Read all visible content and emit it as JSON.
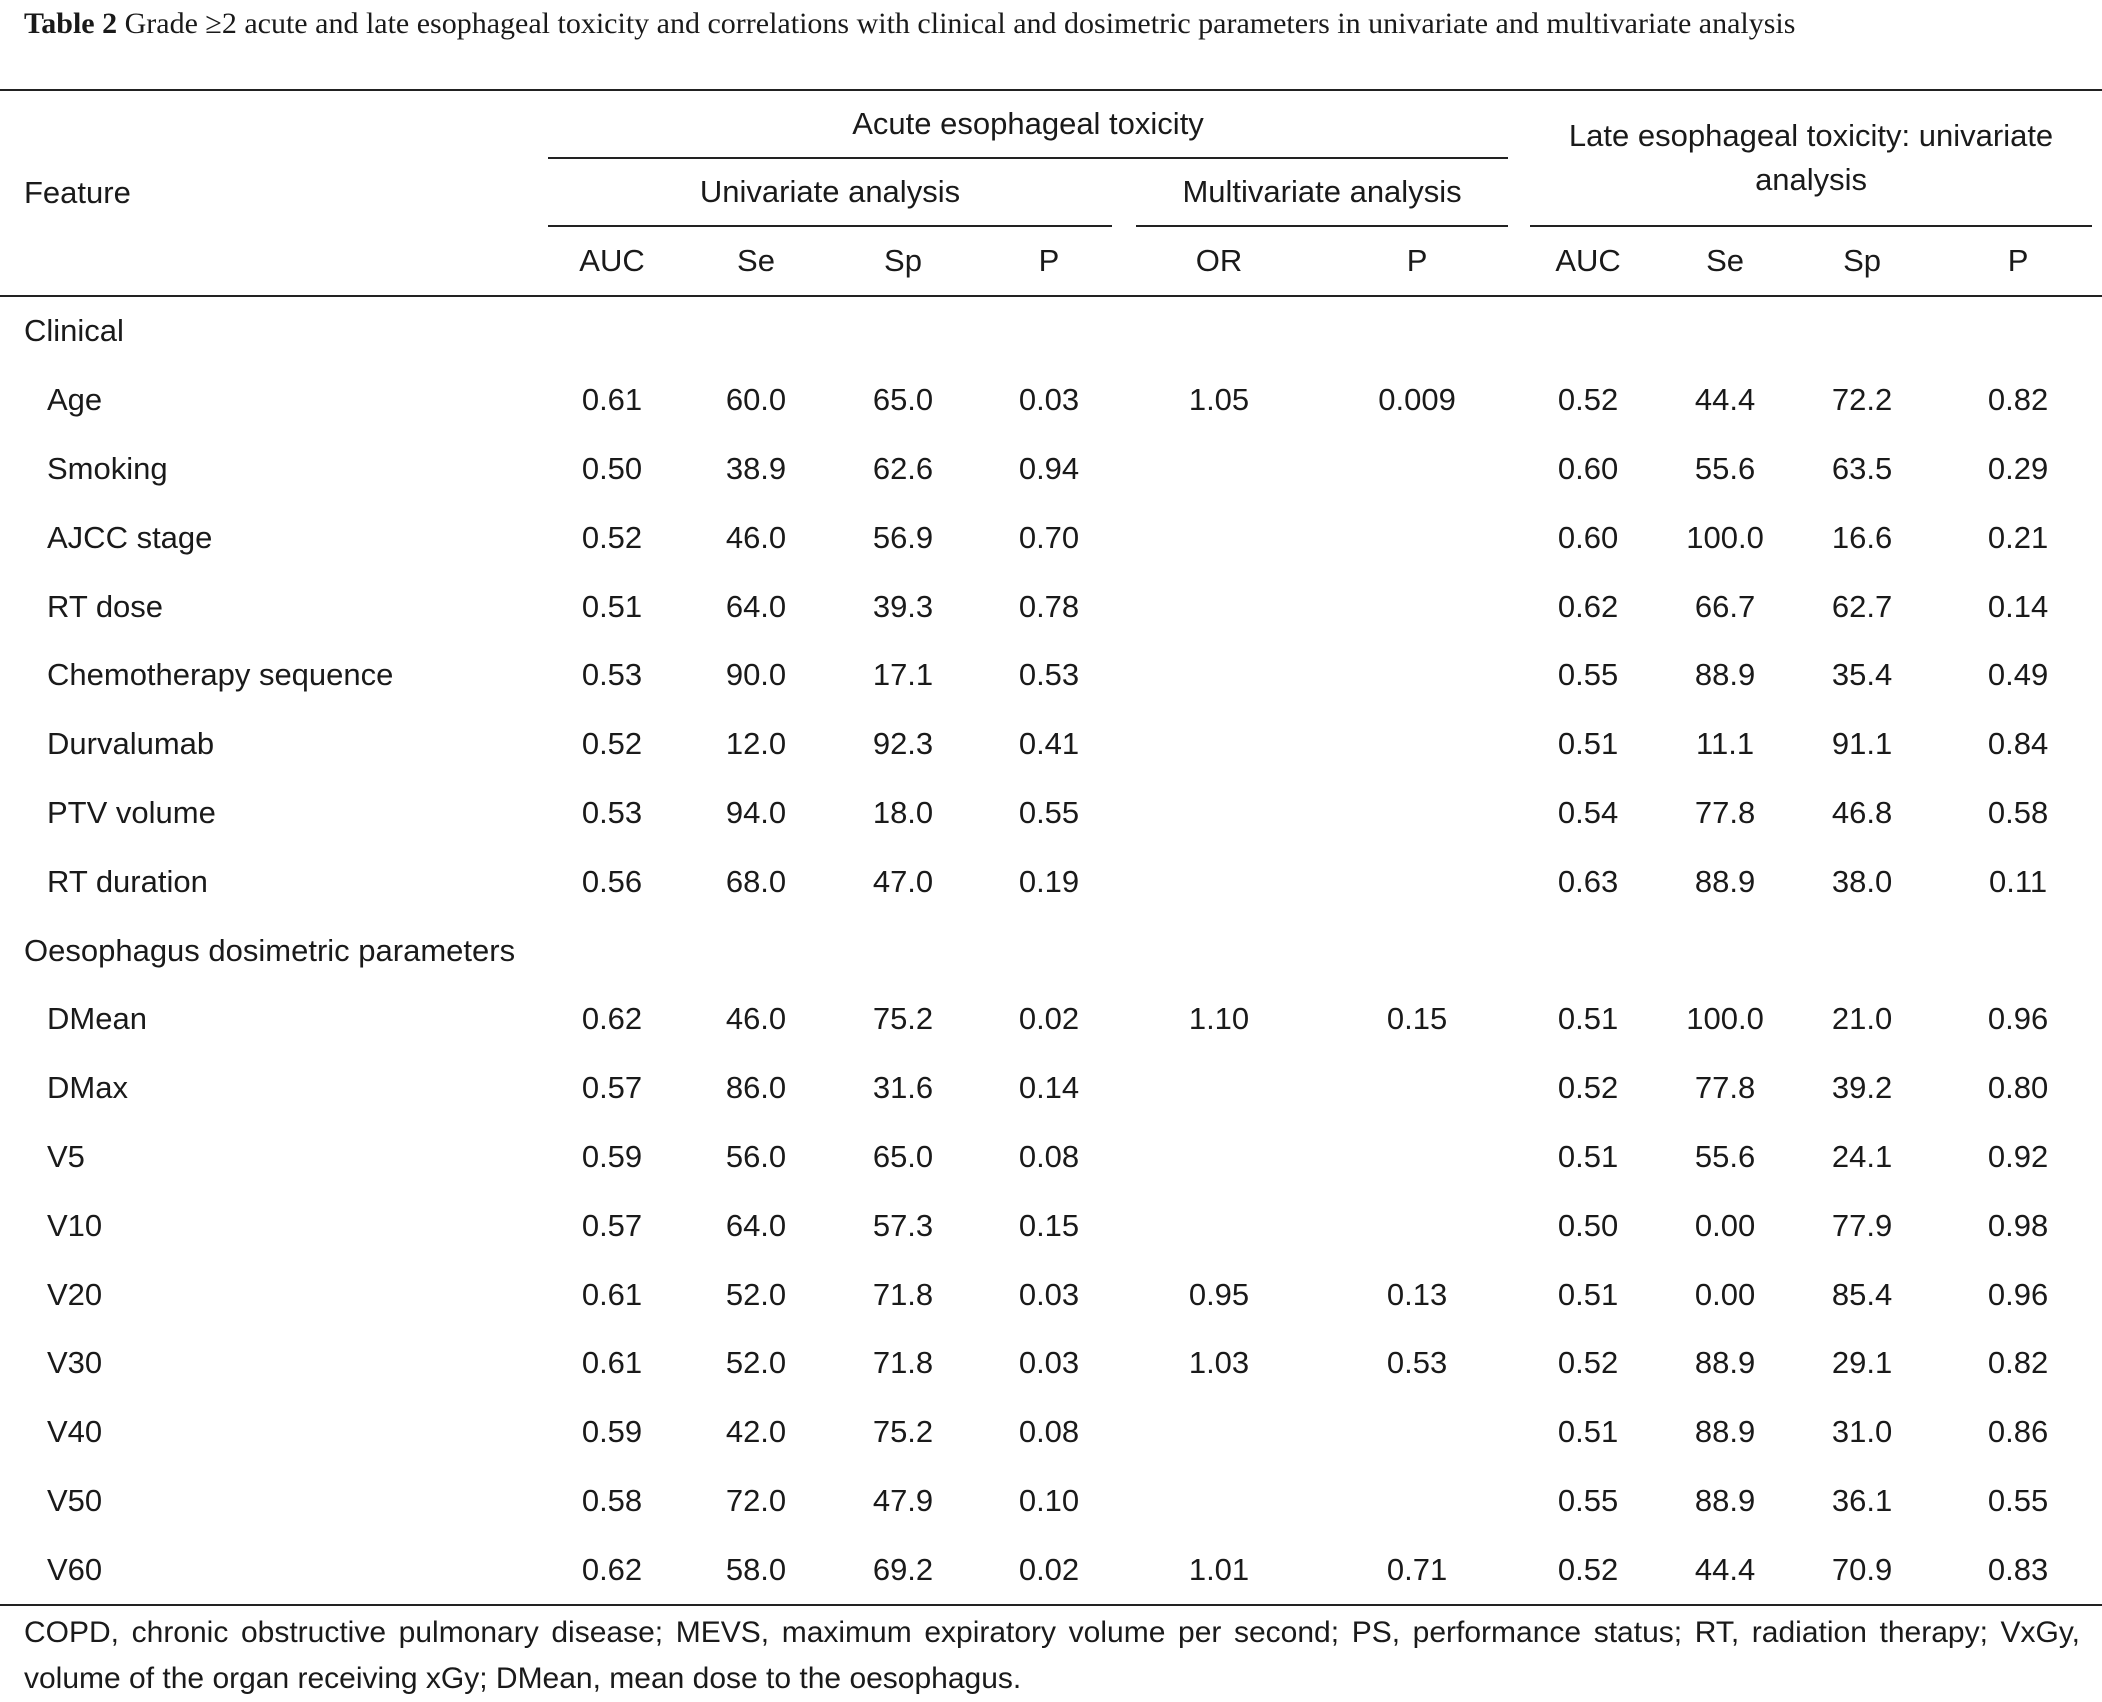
{
  "caption": {
    "label": "Table 2",
    "text": "Grade ≥2 acute and late esophageal toxicity and correlations with clinical and dosimetric parameters in univariate and multivariate analysis"
  },
  "header": {
    "feature": "Feature",
    "acute_group": "Acute esophageal toxicity",
    "univariate": "Univariate analysis",
    "multivariate": "Multivariate analysis",
    "late_group": "Late esophageal toxicity: univariate analysis",
    "cols": {
      "auc": "AUC",
      "se": "Se",
      "sp": "Sp",
      "p": "P",
      "or": "OR"
    }
  },
  "sections": {
    "clinical": "Clinical",
    "dosimetric": "Oesophagus dosimetric parameters"
  },
  "rows": [
    {
      "feature": "Age",
      "u_auc": "0.61",
      "u_se": "60.0",
      "u_sp": "65.0",
      "u_p": "0.03",
      "m_or": "1.05",
      "m_p": "0.009",
      "l_auc": "0.52",
      "l_se": "44.4",
      "l_sp": "72.2",
      "l_p": "0.82"
    },
    {
      "feature": "Smoking",
      "u_auc": "0.50",
      "u_se": "38.9",
      "u_sp": "62.6",
      "u_p": "0.94",
      "m_or": "",
      "m_p": "",
      "l_auc": "0.60",
      "l_se": "55.6",
      "l_sp": "63.5",
      "l_p": "0.29"
    },
    {
      "feature": "AJCC stage",
      "u_auc": "0.52",
      "u_se": "46.0",
      "u_sp": "56.9",
      "u_p": "0.70",
      "m_or": "",
      "m_p": "",
      "l_auc": "0.60",
      "l_se": "100.0",
      "l_sp": "16.6",
      "l_p": "0.21"
    },
    {
      "feature": "RT dose",
      "u_auc": "0.51",
      "u_se": "64.0",
      "u_sp": "39.3",
      "u_p": "0.78",
      "m_or": "",
      "m_p": "",
      "l_auc": "0.62",
      "l_se": "66.7",
      "l_sp": "62.7",
      "l_p": "0.14"
    },
    {
      "feature": "Chemotherapy sequence",
      "u_auc": "0.53",
      "u_se": "90.0",
      "u_sp": "17.1",
      "u_p": "0.53",
      "m_or": "",
      "m_p": "",
      "l_auc": "0.55",
      "l_se": "88.9",
      "l_sp": "35.4",
      "l_p": "0.49"
    },
    {
      "feature": "Durvalumab",
      "u_auc": "0.52",
      "u_se": "12.0",
      "u_sp": "92.3",
      "u_p": "0.41",
      "m_or": "",
      "m_p": "",
      "l_auc": "0.51",
      "l_se": "11.1",
      "l_sp": "91.1",
      "l_p": "0.84"
    },
    {
      "feature": "PTV volume",
      "u_auc": "0.53",
      "u_se": "94.0",
      "u_sp": "18.0",
      "u_p": "0.55",
      "m_or": "",
      "m_p": "",
      "l_auc": "0.54",
      "l_se": "77.8",
      "l_sp": "46.8",
      "l_p": "0.58"
    },
    {
      "feature": "RT duration",
      "u_auc": "0.56",
      "u_se": "68.0",
      "u_sp": "47.0",
      "u_p": "0.19",
      "m_or": "",
      "m_p": "",
      "l_auc": "0.63",
      "l_se": "88.9",
      "l_sp": "38.0",
      "l_p": "0.11"
    },
    {
      "feature": "DMean",
      "u_auc": "0.62",
      "u_se": "46.0",
      "u_sp": "75.2",
      "u_p": "0.02",
      "m_or": "1.10",
      "m_p": "0.15",
      "l_auc": "0.51",
      "l_se": "100.0",
      "l_sp": "21.0",
      "l_p": "0.96"
    },
    {
      "feature": "DMax",
      "u_auc": "0.57",
      "u_se": "86.0",
      "u_sp": "31.6",
      "u_p": "0.14",
      "m_or": "",
      "m_p": "",
      "l_auc": "0.52",
      "l_se": "77.8",
      "l_sp": "39.2",
      "l_p": "0.80"
    },
    {
      "feature": "V5",
      "u_auc": "0.59",
      "u_se": "56.0",
      "u_sp": "65.0",
      "u_p": "0.08",
      "m_or": "",
      "m_p": "",
      "l_auc": "0.51",
      "l_se": "55.6",
      "l_sp": "24.1",
      "l_p": "0.92"
    },
    {
      "feature": "V10",
      "u_auc": "0.57",
      "u_se": "64.0",
      "u_sp": "57.3",
      "u_p": "0.15",
      "m_or": "",
      "m_p": "",
      "l_auc": "0.50",
      "l_se": "0.00",
      "l_sp": "77.9",
      "l_p": "0.98"
    },
    {
      "feature": "V20",
      "u_auc": "0.61",
      "u_se": "52.0",
      "u_sp": "71.8",
      "u_p": "0.03",
      "m_or": "0.95",
      "m_p": "0.13",
      "l_auc": "0.51",
      "l_se": "0.00",
      "l_sp": "85.4",
      "l_p": "0.96"
    },
    {
      "feature": "V30",
      "u_auc": "0.61",
      "u_se": "52.0",
      "u_sp": "71.8",
      "u_p": "0.03",
      "m_or": "1.03",
      "m_p": "0.53",
      "l_auc": "0.52",
      "l_se": "88.9",
      "l_sp": "29.1",
      "l_p": "0.82"
    },
    {
      "feature": "V40",
      "u_auc": "0.59",
      "u_se": "42.0",
      "u_sp": "75.2",
      "u_p": "0.08",
      "m_or": "",
      "m_p": "",
      "l_auc": "0.51",
      "l_se": "88.9",
      "l_sp": "31.0",
      "l_p": "0.86"
    },
    {
      "feature": "V50",
      "u_auc": "0.58",
      "u_se": "72.0",
      "u_sp": "47.9",
      "u_p": "0.10",
      "m_or": "",
      "m_p": "",
      "l_auc": "0.55",
      "l_se": "88.9",
      "l_sp": "36.1",
      "l_p": "0.55"
    },
    {
      "feature": "V60",
      "u_auc": "0.62",
      "u_se": "58.0",
      "u_sp": "69.2",
      "u_p": "0.02",
      "m_or": "1.01",
      "m_p": "0.71",
      "l_auc": "0.52",
      "l_se": "44.4",
      "l_sp": "70.9",
      "l_p": "0.83"
    }
  ],
  "footnote": "COPD, chronic obstructive pulmonary disease; MEVS, maximum expiratory volume per second; PS, performance status; RT, radiation therapy; VxGy, volume of the organ receiving xGy; DMean, mean dose to the oesophagus."
}
